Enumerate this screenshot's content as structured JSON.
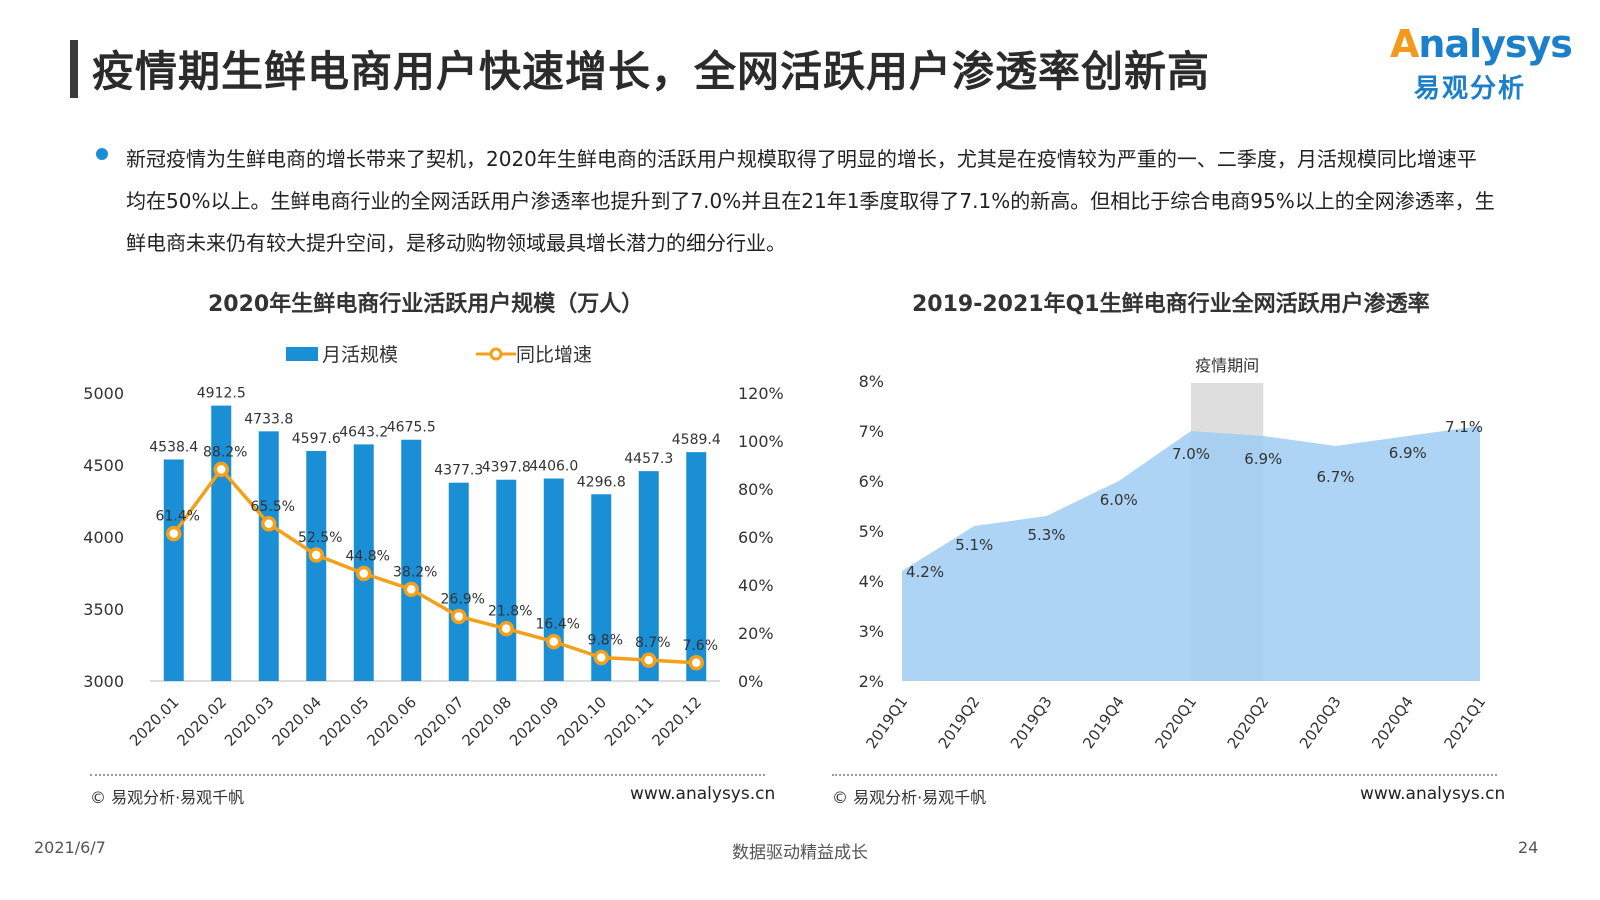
{
  "page": {
    "title": "疫情期生鲜电商用户快速增长，全网活跃用户渗透率创新高",
    "logo_en": "nalysys",
    "logo_cn": "易观分析",
    "bullet": "新冠疫情为生鲜电商的增长带来了契机，2020年生鲜电商的活跃用户规模取得了明显的增长，尤其是在疫情较为严重的一、二季度，月活规模同比增速平均在50%以上。生鲜电商行业的全网活跃用户渗透率也提升到了7.0%并且在21年1季度取得了7.1%的新高。但相比于综合电商95%以上的全网渗透率，生鲜电商未来仍有较大提升空间，是移动购物领域最具增长潜力的细分行业。",
    "date": "2021/6/7",
    "slogan": "数据驱动精益成长",
    "page_number": "24",
    "source": "© 易观分析·易观千帆",
    "url": "www.analysys.cn",
    "colors": {
      "bar": "#1b8fd6",
      "line": "#f5a01a",
      "area": "#9fcdf2",
      "band": "#dedede"
    }
  },
  "chart_data": [
    {
      "type": "bar",
      "title": "2020年生鲜电商行业活跃用户规模（万人）",
      "categories": [
        "2020.01",
        "2020.02",
        "2020.03",
        "2020.04",
        "2020.05",
        "2020.06",
        "2020.07",
        "2020.08",
        "2020.09",
        "2020.10",
        "2020.11",
        "2020.12"
      ],
      "series": [
        {
          "name": "月活规模",
          "type": "bar",
          "axis": "left",
          "values": [
            4538.4,
            4912.5,
            4733.8,
            4597.6,
            4643.2,
            4675.5,
            4377.3,
            4397.8,
            4406.0,
            4296.8,
            4457.3,
            4589.4
          ],
          "labels": [
            "4538.4",
            "4912.5",
            "4733.8",
            "4597.6",
            "4643.2",
            "4675.5",
            "4377.3",
            "4397.8",
            "4406.0",
            "4296.8",
            "4457.3",
            "4589.4"
          ]
        },
        {
          "name": "同比增速",
          "type": "line",
          "axis": "right",
          "values": [
            61.4,
            88.2,
            65.5,
            52.5,
            44.8,
            38.2,
            26.9,
            21.8,
            16.4,
            9.8,
            8.7,
            7.6
          ],
          "labels": [
            "61.4%",
            "88.2%",
            "65.5%",
            "52.5%",
            "44.8%",
            "38.2%",
            "26.9%",
            "21.8%",
            "16.4%",
            "9.8%",
            "8.7%",
            "7.6%"
          ]
        }
      ],
      "left_axis": {
        "min": 3000,
        "max": 5000,
        "ticks": [
          "3000",
          "3500",
          "4000",
          "4500",
          "5000"
        ]
      },
      "right_axis": {
        "min": 0,
        "max": 120,
        "ticks": [
          "0%",
          "20%",
          "40%",
          "60%",
          "80%",
          "100%",
          "120%"
        ]
      },
      "legend": "top"
    },
    {
      "type": "area",
      "title": "2019-2021年Q1生鲜电商行业全网活跃用户渗透率",
      "categories": [
        "2019Q1",
        "2019Q2",
        "2019Q3",
        "2019Q4",
        "2020Q1",
        "2020Q2",
        "2020Q3",
        "2020Q4",
        "2021Q1"
      ],
      "values": [
        4.2,
        5.1,
        5.3,
        6.0,
        7.0,
        6.9,
        6.7,
        6.9,
        7.1
      ],
      "labels": [
        "4.2%",
        "5.1%",
        "5.3%",
        "6.0%",
        "7.0%",
        "6.9%",
        "6.7%",
        "6.9%",
        "7.1%"
      ],
      "y_axis": {
        "min": 2,
        "max": 8,
        "ticks": [
          "2%",
          "3%",
          "4%",
          "5%",
          "6%",
          "7%",
          "8%"
        ]
      },
      "highlight": {
        "label": "疫情期间",
        "from": "2020Q1",
        "to": "2020Q2"
      }
    }
  ]
}
